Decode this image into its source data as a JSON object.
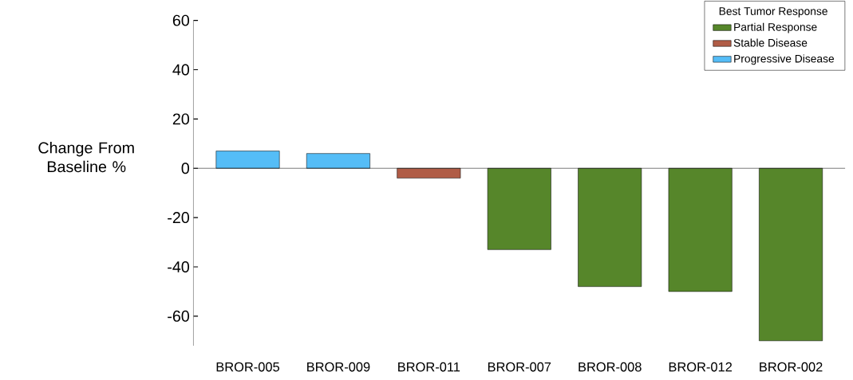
{
  "chart_data": {
    "type": "bar",
    "ylabel": "Change From Baseline %",
    "legend_title": "Best Tumor Response",
    "categories": [
      "BROR-005",
      "BROR-009",
      "BROR-011",
      "BROR-007",
      "BROR-008",
      "BROR-012",
      "BROR-002"
    ],
    "series": [
      {
        "name": "Partial Response",
        "color": "#56862a",
        "values": [
          null,
          null,
          null,
          -33,
          -48,
          -50,
          -70
        ]
      },
      {
        "name": "Stable Disease",
        "color": "#b05c46",
        "values": [
          null,
          null,
          -4,
          null,
          null,
          null,
          null
        ]
      },
      {
        "name": "Progressive Disease",
        "color": "#55bdf7",
        "values": [
          7,
          6,
          null,
          null,
          null,
          null,
          null
        ]
      }
    ],
    "ylim": [
      -72,
      60
    ],
    "yticks": [
      -60,
      -40,
      -20,
      0,
      20,
      40,
      60
    ],
    "ref_lines": [
      {
        "axis": "y",
        "value": 0,
        "color": "#000000"
      }
    ],
    "legend": "top right",
    "grid": false
  }
}
